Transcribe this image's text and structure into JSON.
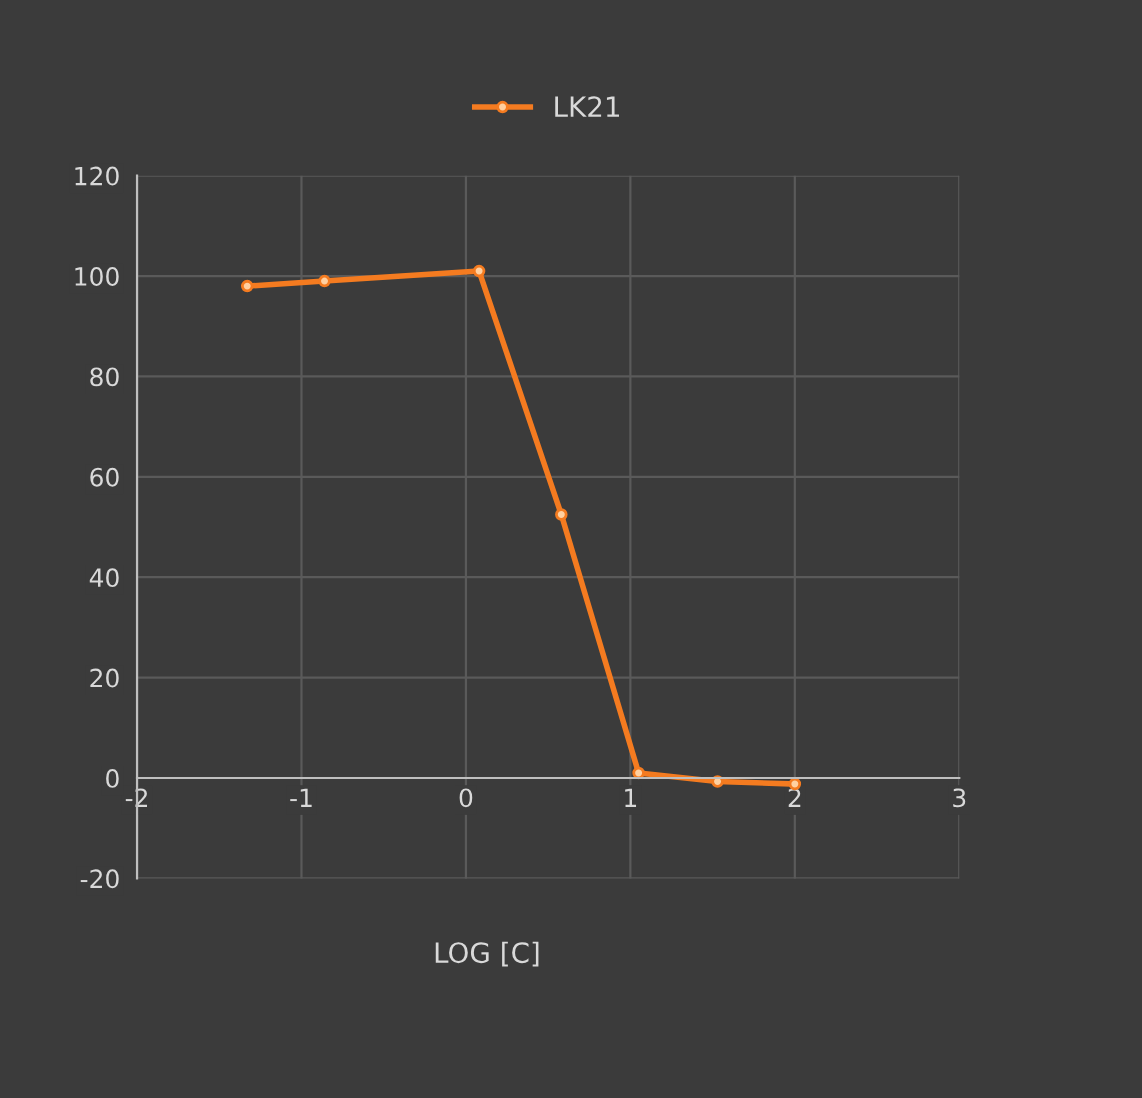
{
  "chart_data": {
    "type": "line",
    "xlabel": "LOG [C]",
    "x": [
      -1.33,
      -0.86,
      0.08,
      0.58,
      1.05,
      1.53,
      2.0
    ],
    "series": [
      {
        "name": "LK21",
        "color": "#f47b20",
        "values": [
          98,
          99,
          101,
          52.5,
          1,
          -0.7,
          -1.2
        ]
      }
    ],
    "xlim": [
      -2,
      3
    ],
    "xticks": [
      -2,
      -1,
      0,
      1,
      2,
      3
    ],
    "ylim": [
      -20,
      120
    ],
    "yticks": [
      -20,
      0,
      20,
      40,
      60,
      80,
      100,
      120
    ],
    "grid": true,
    "legend": "top",
    "marker": "circle",
    "line_style": "solid"
  }
}
